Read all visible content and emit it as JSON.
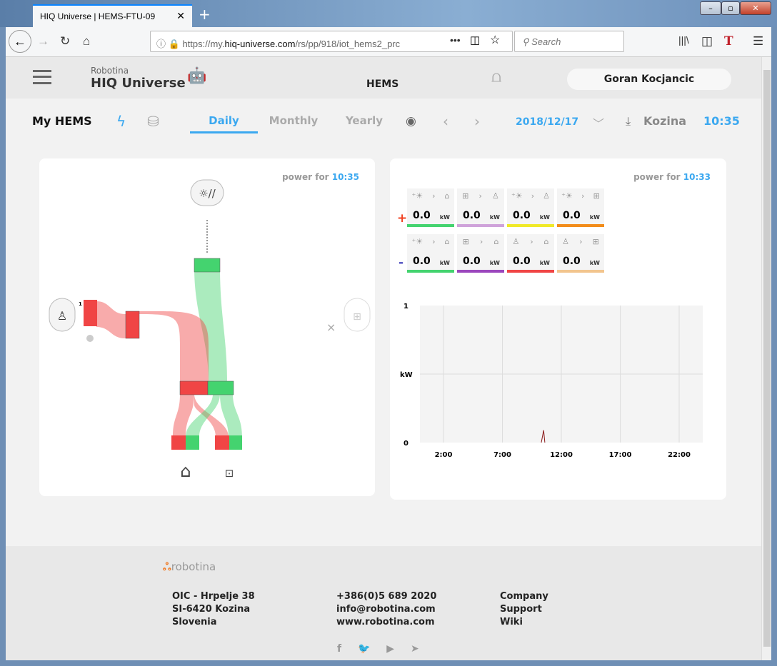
{
  "browser": {
    "tab_title": "HIQ Universe | HEMS-FTU-09",
    "url_prefix": "https://my.",
    "url_domain": "hiq-universe.com",
    "url_path": "/rs/pp/918/iot_hems2_prc",
    "search_placeholder": "Search"
  },
  "header": {
    "brand_small": "Robotina",
    "brand": "HIQ Universe",
    "section": "HEMS",
    "user": "Goran Kocjancic"
  },
  "subnav": {
    "title": "My HEMS",
    "tabs": [
      "Daily",
      "Monthly",
      "Yearly"
    ],
    "active_tab": "Daily",
    "date": "2018/12/17",
    "location": "Kozina",
    "time": "10:35"
  },
  "flow_card": {
    "power_for": "power for",
    "time": "10:35",
    "grid_label": "1",
    "colors": {
      "grid": "#f04545",
      "solar": "#44d36f"
    }
  },
  "tiles_card": {
    "power_for": "power for",
    "time": "10:33",
    "plus": "+",
    "minus": "-",
    "rows": [
      [
        {
          "from": "solar",
          "to": "home",
          "value": "0.0",
          "unit": "kW",
          "color": "#44d36f"
        },
        {
          "from": "battery",
          "to": "grid",
          "value": "0.0",
          "unit": "kW",
          "color": "#cfa3da"
        },
        {
          "from": "solar",
          "to": "grid",
          "value": "0.0",
          "unit": "kW",
          "color": "#f0e928"
        },
        {
          "from": "solar",
          "to": "battery",
          "value": "0.0",
          "unit": "kW",
          "color": "#f28c1a"
        }
      ],
      [
        {
          "from": "solar",
          "to": "home",
          "value": "0.0",
          "unit": "kW",
          "color": "#44d36f"
        },
        {
          "from": "battery",
          "to": "home",
          "value": "0.0",
          "unit": "kW",
          "color": "#9b47bd"
        },
        {
          "from": "grid",
          "to": "home",
          "value": "0.0",
          "unit": "kW",
          "color": "#f04545"
        },
        {
          "from": "grid",
          "to": "battery",
          "value": "0.0",
          "unit": "kW",
          "color": "#f2c58e"
        }
      ]
    ]
  },
  "chart_data": {
    "type": "line",
    "ylabel": "kW",
    "ylim": [
      0,
      1
    ],
    "yticks": [
      "0",
      "1"
    ],
    "xlim": [
      0,
      24
    ],
    "xticks": [
      {
        "v": 2,
        "label": "2:00"
      },
      {
        "v": 7,
        "label": "7:00"
      },
      {
        "v": 12,
        "label": "12:00"
      },
      {
        "v": 17,
        "label": "17:00"
      },
      {
        "v": 22,
        "label": "22:00"
      }
    ],
    "grid": true,
    "series": [
      {
        "color": "#8b1a1a",
        "x": [
          10.3,
          10.5,
          10.6
        ],
        "y": [
          0,
          0.09,
          0
        ]
      }
    ]
  },
  "footer": {
    "logo": "robotina",
    "address": [
      "OIC - Hrpelje 38",
      "SI-6420 Kozina",
      "Slovenia"
    ],
    "contact": [
      "+386(0)5 689 2020",
      "info@robotina.com",
      "www.robotina.com"
    ],
    "links": [
      "Company",
      "Support",
      "Wiki"
    ],
    "social": [
      "facebook",
      "twitter",
      "youtube",
      "telegram"
    ]
  }
}
